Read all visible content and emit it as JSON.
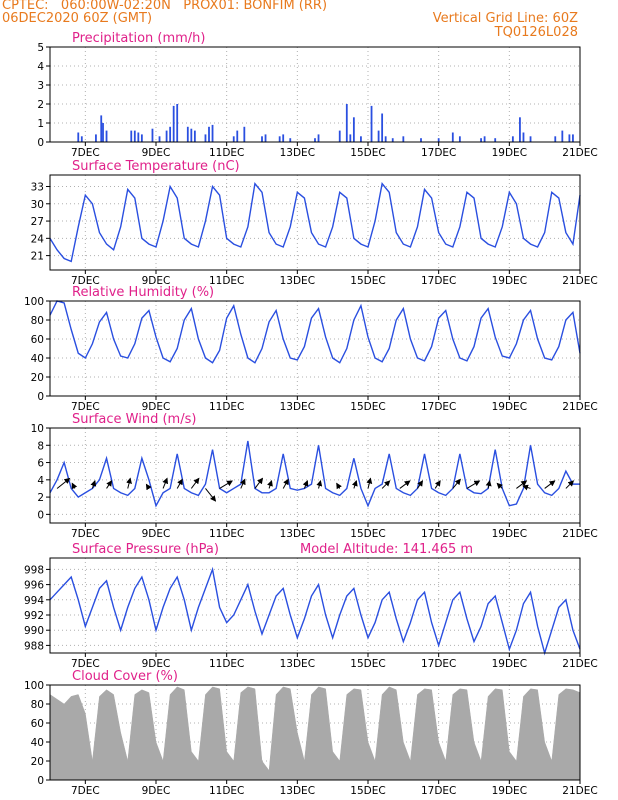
{
  "header": {
    "line1_left": "CPTEC:   060:00W-02:20N   PROX01: BONFIM (RR)",
    "line2_left": "06DEC2020 60Z (GMT)",
    "line2_right": "Vertical Grid Line: 60Z",
    "line3_right": "TQ0126L028"
  },
  "date_labels": [
    "7DEC",
    "9DEC",
    "11DEC",
    "13DEC",
    "15DEC",
    "17DEC",
    "19DEC",
    "21DEC"
  ],
  "colors": {
    "series": "#2a4fe0",
    "grid": "#b0b0b0",
    "header": "#e87a1e",
    "title": "#e0218a",
    "cloud": "#a9a9a9"
  },
  "chart_data": [
    {
      "id": "precip",
      "type": "bar",
      "title": "Precipitation (mm/h)",
      "ylim": [
        0,
        5
      ],
      "yticks": [
        "0",
        "1",
        "2",
        "3",
        "4",
        "5"
      ],
      "grid": true,
      "x_days_since_start": [
        0.8,
        0.9,
        1.3,
        1.45,
        1.5,
        1.6,
        2.3,
        2.4,
        2.5,
        2.6,
        2.9,
        3.1,
        3.3,
        3.4,
        3.5,
        3.6,
        3.9,
        4.0,
        4.1,
        4.4,
        4.5,
        4.6,
        5.2,
        5.3,
        5.5,
        6.0,
        6.1,
        6.5,
        6.6,
        6.8,
        7.5,
        7.6,
        8.2,
        8.4,
        8.5,
        8.6,
        8.8,
        9.1,
        9.3,
        9.4,
        9.5,
        9.7,
        10.0,
        10.5,
        11.0,
        11.4,
        11.6,
        12.2,
        12.3,
        12.6,
        13.1,
        13.3,
        13.4,
        13.6,
        14.3,
        14.5,
        14.7,
        14.8
      ],
      "values": [
        0.5,
        0.3,
        0.4,
        1.4,
        1.0,
        0.6,
        0.6,
        0.6,
        0.5,
        0.4,
        0.7,
        0.3,
        0.6,
        0.8,
        1.9,
        2.0,
        0.8,
        0.7,
        0.6,
        0.4,
        0.8,
        0.9,
        0.3,
        0.6,
        0.8,
        0.3,
        0.4,
        0.3,
        0.4,
        0.2,
        0.2,
        0.4,
        0.6,
        2.0,
        0.4,
        1.3,
        0.3,
        1.9,
        0.6,
        1.5,
        0.3,
        0.2,
        0.3,
        0.2,
        0.2,
        0.5,
        0.3,
        0.2,
        0.3,
        0.2,
        0.3,
        1.3,
        0.5,
        0.3,
        0.3,
        0.6,
        0.4,
        0.4
      ]
    },
    {
      "id": "temp",
      "type": "line",
      "title": "Surface Temperature (nC)",
      "ylim": [
        18.5,
        35
      ],
      "yticks": [
        "21",
        "24",
        "27",
        "30",
        "33"
      ],
      "ytick_values": [
        21,
        24,
        27,
        30,
        33
      ],
      "grid": true,
      "x_days_since_start": [
        0.0,
        0.2,
        0.4,
        0.6,
        0.8,
        1.0,
        1.2,
        1.4,
        1.6,
        1.8,
        2.0,
        2.2,
        2.4,
        2.6,
        2.8,
        3.0,
        3.2,
        3.4,
        3.6,
        3.8,
        4.0,
        4.2,
        4.4,
        4.6,
        4.8,
        5.0,
        5.2,
        5.4,
        5.6,
        5.8,
        6.0,
        6.2,
        6.4,
        6.6,
        6.8,
        7.0,
        7.2,
        7.4,
        7.6,
        7.8,
        8.0,
        8.2,
        8.4,
        8.6,
        8.8,
        9.0,
        9.2,
        9.4,
        9.6,
        9.8,
        10.0,
        10.2,
        10.4,
        10.6,
        10.8,
        11.0,
        11.2,
        11.4,
        11.6,
        11.8,
        12.0,
        12.2,
        12.4,
        12.6,
        12.8,
        13.0,
        13.2,
        13.4,
        13.6,
        13.8,
        14.0,
        14.2,
        14.4,
        14.6,
        14.8,
        15.0
      ],
      "values": [
        24,
        22,
        20.5,
        20,
        26,
        31.5,
        30,
        25,
        23,
        22,
        26,
        32.5,
        31,
        24,
        23,
        22.5,
        27,
        33,
        31,
        24,
        23,
        22.5,
        27,
        33,
        31.5,
        24,
        23,
        22.5,
        26,
        33.5,
        32,
        25,
        23,
        22.5,
        26,
        32,
        31,
        25,
        23,
        22.5,
        26,
        32,
        31,
        24,
        23,
        22.5,
        27,
        33.5,
        32,
        25,
        23,
        22.5,
        26,
        32.5,
        31,
        25,
        23,
        22.5,
        26,
        32,
        31,
        24,
        23,
        22.5,
        26,
        32,
        30,
        24,
        23,
        22.5,
        25,
        32,
        31,
        25,
        23,
        31.5
      ]
    },
    {
      "id": "rh",
      "type": "line",
      "title": "Relative Humidity (%)",
      "ylim": [
        0,
        100
      ],
      "yticks": [
        "0",
        "20",
        "40",
        "60",
        "80",
        "100"
      ],
      "grid": true,
      "x_days_since_start": [
        0.0,
        0.2,
        0.4,
        0.6,
        0.8,
        1.0,
        1.2,
        1.4,
        1.6,
        1.8,
        2.0,
        2.2,
        2.4,
        2.6,
        2.8,
        3.0,
        3.2,
        3.4,
        3.6,
        3.8,
        4.0,
        4.2,
        4.4,
        4.6,
        4.8,
        5.0,
        5.2,
        5.4,
        5.6,
        5.8,
        6.0,
        6.2,
        6.4,
        6.6,
        6.8,
        7.0,
        7.2,
        7.4,
        7.6,
        7.8,
        8.0,
        8.2,
        8.4,
        8.6,
        8.8,
        9.0,
        9.2,
        9.4,
        9.6,
        9.8,
        10.0,
        10.2,
        10.4,
        10.6,
        10.8,
        11.0,
        11.2,
        11.4,
        11.6,
        11.8,
        12.0,
        12.2,
        12.4,
        12.6,
        12.8,
        13.0,
        13.2,
        13.4,
        13.6,
        13.8,
        14.0,
        14.2,
        14.4,
        14.6,
        14.8,
        15.0
      ],
      "values": [
        85,
        100,
        98,
        70,
        45,
        40,
        55,
        78,
        88,
        60,
        42,
        40,
        55,
        82,
        90,
        62,
        40,
        36,
        50,
        80,
        92,
        60,
        40,
        35,
        48,
        82,
        95,
        65,
        40,
        35,
        50,
        78,
        90,
        60,
        40,
        38,
        52,
        82,
        92,
        62,
        40,
        35,
        50,
        80,
        95,
        62,
        40,
        36,
        50,
        80,
        92,
        60,
        40,
        37,
        52,
        82,
        90,
        60,
        40,
        37,
        52,
        82,
        92,
        62,
        42,
        40,
        55,
        80,
        90,
        60,
        40,
        38,
        52,
        80,
        88,
        45
      ]
    },
    {
      "id": "wind",
      "type": "line",
      "title": "Surface Wind (m/s)",
      "ylim": [
        -1,
        10
      ],
      "yticks": [
        "0",
        "2",
        "4",
        "6",
        "8",
        "10"
      ],
      "grid": true,
      "x_days_since_start": [
        0.0,
        0.2,
        0.4,
        0.6,
        0.8,
        1.0,
        1.2,
        1.4,
        1.6,
        1.8,
        2.0,
        2.2,
        2.4,
        2.6,
        2.8,
        3.0,
        3.2,
        3.4,
        3.6,
        3.8,
        4.0,
        4.2,
        4.4,
        4.6,
        4.8,
        5.0,
        5.2,
        5.4,
        5.6,
        5.8,
        6.0,
        6.2,
        6.4,
        6.6,
        6.8,
        7.0,
        7.2,
        7.4,
        7.6,
        7.8,
        8.0,
        8.2,
        8.4,
        8.6,
        8.8,
        9.0,
        9.2,
        9.4,
        9.6,
        9.8,
        10.0,
        10.2,
        10.4,
        10.6,
        10.8,
        11.0,
        11.2,
        11.4,
        11.6,
        11.8,
        12.0,
        12.2,
        12.4,
        12.6,
        12.8,
        13.0,
        13.2,
        13.4,
        13.6,
        13.8,
        14.0,
        14.2,
        14.4,
        14.6,
        14.8,
        15.0
      ],
      "values": [
        2.5,
        4,
        6,
        3,
        2,
        2.5,
        3,
        4,
        6.5,
        3,
        2.5,
        2.2,
        3,
        6.5,
        4,
        1,
        2.5,
        3,
        7,
        3,
        2.5,
        2.2,
        3.5,
        7.5,
        3,
        2.5,
        3,
        3.5,
        8.5,
        3,
        2.5,
        2.5,
        3,
        7,
        3,
        2.8,
        3,
        3.5,
        8,
        3,
        2.5,
        2.2,
        3,
        6.5,
        3,
        1,
        3,
        3.5,
        7,
        3,
        2.5,
        2.2,
        3,
        7,
        3,
        2.5,
        2.2,
        3,
        7,
        3,
        2.5,
        2.4,
        3,
        7.5,
        3,
        1,
        1.2,
        3,
        8,
        3.5,
        2.5,
        2.2,
        3,
        5,
        3.5,
        3.5
      ],
      "vectors": [
        {
          "x_days_since_start": 0.2,
          "u": 2.5,
          "v": 2.0
        },
        {
          "x_days_since_start": 0.7,
          "u": -0.5,
          "v": 1.0
        },
        {
          "x_days_since_start": 1.2,
          "u": 0.5,
          "v": 1.5
        },
        {
          "x_days_since_start": 1.6,
          "u": 1.0,
          "v": 1.5
        },
        {
          "x_days_since_start": 2.2,
          "u": 0.5,
          "v": 2.0
        },
        {
          "x_days_since_start": 2.8,
          "u": -0.5,
          "v": 0.8
        },
        {
          "x_days_since_start": 3.2,
          "u": 0.8,
          "v": 2.0
        },
        {
          "x_days_since_start": 3.6,
          "u": 1.0,
          "v": 1.8
        },
        {
          "x_days_since_start": 4.0,
          "u": 1.5,
          "v": 2.0
        },
        {
          "x_days_since_start": 4.4,
          "u": 2.0,
          "v": -2.5
        },
        {
          "x_days_since_start": 4.8,
          "u": 2.5,
          "v": 1.5
        },
        {
          "x_days_since_start": 5.4,
          "u": 0.8,
          "v": 1.8
        },
        {
          "x_days_since_start": 5.8,
          "u": 1.5,
          "v": 2.0
        },
        {
          "x_days_since_start": 6.2,
          "u": 0.5,
          "v": 1.5
        },
        {
          "x_days_since_start": 6.6,
          "u": 1.0,
          "v": 1.8
        },
        {
          "x_days_since_start": 7.2,
          "u": 0.6,
          "v": 1.5
        },
        {
          "x_days_since_start": 7.6,
          "u": 0.4,
          "v": 1.5
        },
        {
          "x_days_since_start": 8.2,
          "u": -0.6,
          "v": 1.0
        },
        {
          "x_days_since_start": 8.6,
          "u": 0.5,
          "v": 1.5
        },
        {
          "x_days_since_start": 9.0,
          "u": 0.5,
          "v": 2.0
        },
        {
          "x_days_since_start": 9.4,
          "u": 1.5,
          "v": 1.5
        },
        {
          "x_days_since_start": 9.9,
          "u": 2.0,
          "v": 1.5
        },
        {
          "x_days_since_start": 10.4,
          "u": 1.0,
          "v": 1.5
        },
        {
          "x_days_since_start": 10.9,
          "u": 1.0,
          "v": 1.5
        },
        {
          "x_days_since_start": 11.4,
          "u": 1.5,
          "v": 1.8
        },
        {
          "x_days_since_start": 11.8,
          "u": 2.5,
          "v": 1.5
        },
        {
          "x_days_since_start": 12.4,
          "u": 0.3,
          "v": 1.5
        },
        {
          "x_days_since_start": 12.8,
          "u": -1.0,
          "v": 1.0
        },
        {
          "x_days_since_start": 13.2,
          "u": 2.0,
          "v": 1.5
        },
        {
          "x_days_since_start": 13.6,
          "u": -1.5,
          "v": 0.5
        },
        {
          "x_days_since_start": 14.0,
          "u": 2.0,
          "v": 1.5
        },
        {
          "x_days_since_start": 14.6,
          "u": 1.5,
          "v": 1.5
        }
      ]
    },
    {
      "id": "pres",
      "type": "line",
      "title": "Surface Pressure (hPa)",
      "annotation": "Model Altitude: 141.465 m",
      "ylim": [
        987,
        999.5
      ],
      "yticks": [
        "988",
        "990",
        "992",
        "994",
        "996",
        "998"
      ],
      "ytick_values": [
        988,
        990,
        992,
        994,
        996,
        998
      ],
      "grid": true,
      "x_days_since_start": [
        0.0,
        0.2,
        0.4,
        0.6,
        0.8,
        1.0,
        1.2,
        1.4,
        1.6,
        1.8,
        2.0,
        2.2,
        2.4,
        2.6,
        2.8,
        3.0,
        3.2,
        3.4,
        3.6,
        3.8,
        4.0,
        4.2,
        4.4,
        4.6,
        4.8,
        5.0,
        5.2,
        5.4,
        5.6,
        5.8,
        6.0,
        6.2,
        6.4,
        6.6,
        6.8,
        7.0,
        7.2,
        7.4,
        7.6,
        7.8,
        8.0,
        8.2,
        8.4,
        8.6,
        8.8,
        9.0,
        9.2,
        9.4,
        9.6,
        9.8,
        10.0,
        10.2,
        10.4,
        10.6,
        10.8,
        11.0,
        11.2,
        11.4,
        11.6,
        11.8,
        12.0,
        12.2,
        12.4,
        12.6,
        12.8,
        13.0,
        13.2,
        13.4,
        13.6,
        13.8,
        14.0,
        14.2,
        14.4,
        14.6,
        14.8,
        15.0
      ],
      "values": [
        994,
        995,
        996,
        997,
        994,
        990.5,
        993,
        995.5,
        996.5,
        993,
        990,
        993,
        995.5,
        997,
        994,
        990,
        993,
        995.5,
        997,
        994,
        990,
        993,
        995.5,
        998,
        993,
        991,
        992,
        994,
        996,
        992.5,
        989.5,
        992,
        994.5,
        995.5,
        992,
        989,
        991.5,
        994.5,
        996,
        992,
        989,
        992,
        994.5,
        995.5,
        992,
        989,
        991,
        994,
        995,
        991.5,
        988.5,
        991,
        994,
        995,
        991,
        988,
        991,
        994,
        995,
        991.5,
        988.5,
        990.5,
        993.5,
        994.5,
        991,
        987.5,
        990,
        993.5,
        995,
        990.5,
        987,
        990,
        993,
        994,
        990,
        987.5
      ]
    },
    {
      "id": "cloud",
      "type": "area",
      "title": "Cloud Cover (%)",
      "ylim": [
        0,
        100
      ],
      "yticks": [
        "0",
        "20",
        "40",
        "60",
        "80",
        "100"
      ],
      "grid": true,
      "x_days_since_start": [
        0.0,
        0.2,
        0.4,
        0.6,
        0.8,
        1.0,
        1.2,
        1.4,
        1.6,
        1.8,
        2.0,
        2.2,
        2.4,
        2.6,
        2.8,
        3.0,
        3.2,
        3.4,
        3.6,
        3.8,
        4.0,
        4.2,
        4.4,
        4.6,
        4.8,
        5.0,
        5.2,
        5.4,
        5.6,
        5.8,
        6.0,
        6.2,
        6.4,
        6.6,
        6.8,
        7.0,
        7.2,
        7.4,
        7.6,
        7.8,
        8.0,
        8.2,
        8.4,
        8.6,
        8.8,
        9.0,
        9.2,
        9.4,
        9.6,
        9.8,
        10.0,
        10.2,
        10.4,
        10.6,
        10.8,
        11.0,
        11.2,
        11.4,
        11.6,
        11.8,
        12.0,
        12.2,
        12.4,
        12.6,
        12.8,
        13.0,
        13.2,
        13.4,
        13.6,
        13.8,
        14.0,
        14.2,
        14.4,
        14.6,
        14.8,
        15.0
      ],
      "values": [
        90,
        85,
        80,
        88,
        90,
        70,
        20,
        88,
        95,
        90,
        50,
        20,
        90,
        95,
        92,
        40,
        20,
        90,
        98,
        95,
        30,
        20,
        90,
        98,
        96,
        30,
        20,
        92,
        98,
        96,
        20,
        10,
        90,
        98,
        96,
        50,
        20,
        90,
        98,
        96,
        30,
        20,
        90,
        96,
        95,
        40,
        20,
        90,
        98,
        95,
        40,
        20,
        90,
        96,
        95,
        40,
        20,
        90,
        96,
        95,
        40,
        20,
        88,
        96,
        95,
        30,
        20,
        88,
        96,
        95,
        40,
        20,
        90,
        96,
        95,
        92
      ]
    }
  ]
}
